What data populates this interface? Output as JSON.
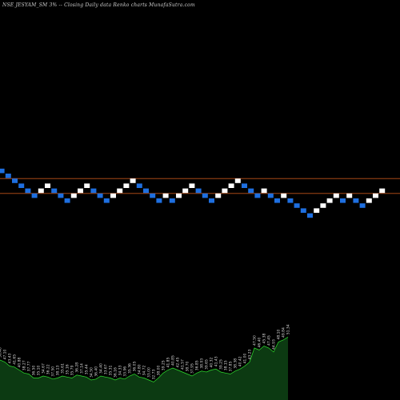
{
  "chart_data": {
    "type": "renko",
    "title": "NSE JESYAM_SM 3% -- Closing Daily data Renko charts MunafaSutra.com",
    "colors": {
      "background": "#000000",
      "up_brick": "#ffffff",
      "down_brick": "#1e6fe0",
      "reference_line": "#c0541a",
      "volume_fill": "#0c3a12",
      "volume_line": "#2ee02e"
    },
    "reference_lines": [
      {
        "label": "upper",
        "level": 4.5
      },
      {
        "label": "lower",
        "level": 1.5
      }
    ],
    "bricks": [
      {
        "dir": "down",
        "level": 6
      },
      {
        "dir": "down",
        "level": 5
      },
      {
        "dir": "down",
        "level": 4
      },
      {
        "dir": "down",
        "level": 3
      },
      {
        "dir": "down",
        "level": 2
      },
      {
        "dir": "down",
        "level": 1
      },
      {
        "dir": "up",
        "level": 2
      },
      {
        "dir": "up",
        "level": 3
      },
      {
        "dir": "down",
        "level": 2
      },
      {
        "dir": "down",
        "level": 1
      },
      {
        "dir": "down",
        "level": 0
      },
      {
        "dir": "up",
        "level": 1
      },
      {
        "dir": "up",
        "level": 2
      },
      {
        "dir": "up",
        "level": 3
      },
      {
        "dir": "down",
        "level": 2
      },
      {
        "dir": "down",
        "level": 1
      },
      {
        "dir": "down",
        "level": 0
      },
      {
        "dir": "up",
        "level": 1
      },
      {
        "dir": "up",
        "level": 2
      },
      {
        "dir": "up",
        "level": 3
      },
      {
        "dir": "up",
        "level": 4
      },
      {
        "dir": "down",
        "level": 3
      },
      {
        "dir": "down",
        "level": 2
      },
      {
        "dir": "down",
        "level": 1
      },
      {
        "dir": "down",
        "level": 0
      },
      {
        "dir": "up",
        "level": 1
      },
      {
        "dir": "down",
        "level": 0
      },
      {
        "dir": "up",
        "level": 1
      },
      {
        "dir": "up",
        "level": 2
      },
      {
        "dir": "up",
        "level": 3
      },
      {
        "dir": "down",
        "level": 2
      },
      {
        "dir": "down",
        "level": 1
      },
      {
        "dir": "down",
        "level": 0
      },
      {
        "dir": "up",
        "level": 1
      },
      {
        "dir": "up",
        "level": 2
      },
      {
        "dir": "up",
        "level": 3
      },
      {
        "dir": "up",
        "level": 4
      },
      {
        "dir": "down",
        "level": 3
      },
      {
        "dir": "down",
        "level": 2
      },
      {
        "dir": "down",
        "level": 1
      },
      {
        "dir": "up",
        "level": 2
      },
      {
        "dir": "down",
        "level": 1
      },
      {
        "dir": "down",
        "level": 0
      },
      {
        "dir": "up",
        "level": 1
      },
      {
        "dir": "down",
        "level": 0
      },
      {
        "dir": "down",
        "level": -1
      },
      {
        "dir": "down",
        "level": -2
      },
      {
        "dir": "down",
        "level": -3
      },
      {
        "dir": "up",
        "level": -2
      },
      {
        "dir": "up",
        "level": -1
      },
      {
        "dir": "up",
        "level": 0
      },
      {
        "dir": "up",
        "level": 1
      },
      {
        "dir": "down",
        "level": 0
      },
      {
        "dir": "up",
        "level": 1
      },
      {
        "dir": "down",
        "level": 0
      },
      {
        "dir": "down",
        "level": -1
      },
      {
        "dir": "up",
        "level": 0
      },
      {
        "dir": "up",
        "level": 1
      },
      {
        "dir": "up",
        "level": 2
      }
    ],
    "volume_labels": [
      "56.40",
      "47.10",
      "43.43",
      "41.65",
      "40.88",
      "38.27",
      "37.77",
      "36.50",
      "35.10",
      "34.67",
      "36.22",
      "37.50",
      "38.13",
      "35.61",
      "35.16",
      "35.79",
      "36.28",
      "37.14",
      "35.44",
      "34.50",
      "36.40",
      "34.40",
      "33.67",
      "35.31",
      "36.16",
      "34.33",
      "33.96",
      "35.36",
      "36.05",
      "34.80",
      "34.72",
      "33.00",
      "32.73",
      "38.00",
      "39.25",
      "41.85",
      "40.85",
      "42.45",
      "41.57",
      "38.70",
      "37.95",
      "36.85",
      "38.93",
      "39.65",
      "40.32",
      "41.43",
      "39.25",
      "38.15",
      "37.85",
      "38.38",
      "40.42",
      "41.00",
      "43.23",
      "47.50",
      "46.40",
      "45.38",
      "47.45",
      "44.93",
      "48.10",
      "49.84",
      "51.34"
    ],
    "volume_series": [
      40,
      38,
      34,
      33,
      30,
      27,
      26,
      22,
      22,
      24,
      23,
      21,
      22,
      24,
      23,
      22,
      25,
      24,
      23,
      20,
      21,
      24,
      23,
      22,
      20,
      22,
      21,
      24,
      26,
      23,
      22,
      20,
      18,
      22,
      27,
      30,
      32,
      30,
      28,
      26,
      24,
      27,
      29,
      28,
      30,
      31,
      28,
      27,
      26,
      29,
      31,
      34,
      38,
      52,
      50,
      54,
      52,
      48,
      58,
      60,
      63
    ]
  }
}
